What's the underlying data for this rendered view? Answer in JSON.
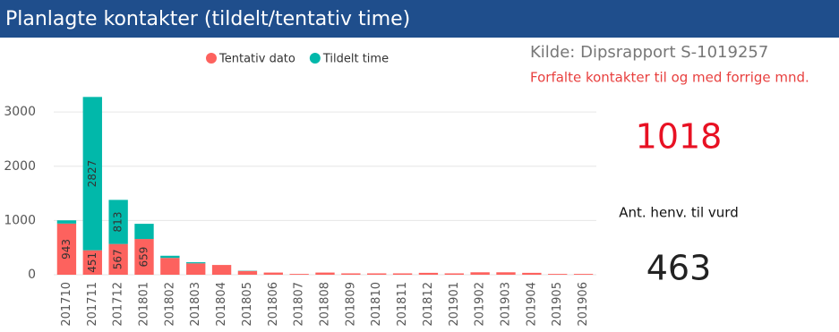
{
  "header": {
    "title": "Planlagte kontakter (tildelt/tentativ time)"
  },
  "chart_data": {
    "type": "stacked-bar",
    "categories": [
      "201710",
      "201711",
      "201712",
      "201801",
      "201802",
      "201803",
      "201804",
      "201805",
      "201806",
      "201807",
      "201808",
      "201809",
      "201810",
      "201811",
      "201812",
      "201901",
      "201902",
      "201903",
      "201904",
      "201905",
      "201906"
    ],
    "series": [
      {
        "name": "Tentativ dato",
        "color": "#fd625e",
        "values": [
          943,
          451,
          567,
          659,
          310,
          210,
          180,
          70,
          40,
          15,
          40,
          25,
          25,
          25,
          35,
          25,
          45,
          45,
          35,
          15,
          15
        ],
        "value_labels": [
          "943",
          "451",
          "567",
          "659",
          null,
          null,
          null,
          null,
          null,
          null,
          null,
          null,
          null,
          null,
          null,
          null,
          null,
          null,
          null,
          null,
          null
        ]
      },
      {
        "name": "Tildelt time",
        "color": "#01b8aa",
        "values": [
          60,
          2827,
          813,
          280,
          40,
          20,
          0,
          5,
          0,
          0,
          0,
          0,
          0,
          0,
          0,
          0,
          0,
          0,
          0,
          0,
          0
        ],
        "value_labels": [
          null,
          "2827",
          "813",
          null,
          null,
          null,
          null,
          null,
          null,
          null,
          null,
          null,
          null,
          null,
          null,
          null,
          null,
          null,
          null,
          null,
          null
        ]
      }
    ],
    "ylim": [
      0,
      3300
    ],
    "yticks": [
      0,
      1000,
      2000,
      3000
    ],
    "grid": true,
    "legend": "top"
  },
  "info": {
    "source": "Kilde: Dipsrapport S-1019257",
    "overdue_label": "Forfalte kontakter til og med forrige mnd.",
    "overdue_value": 1018,
    "referrals_label": "Ant. henv. til vurd",
    "referrals_value": 463
  }
}
